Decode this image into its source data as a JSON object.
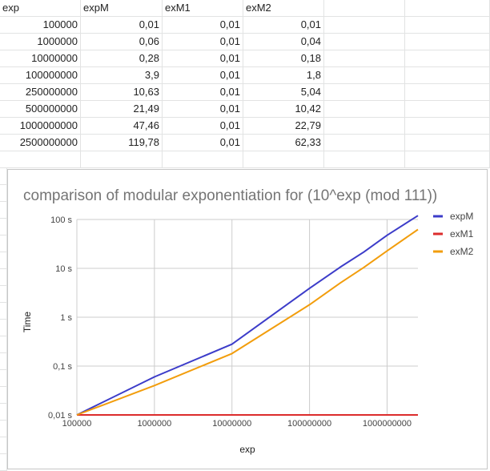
{
  "sheet": {
    "headers": [
      "exp",
      "expM",
      "exM1",
      "exM2"
    ],
    "rows": [
      [
        "100000",
        "0,01",
        "0,01",
        "0,01"
      ],
      [
        "1000000",
        "0,06",
        "0,01",
        "0,04"
      ],
      [
        "10000000",
        "0,28",
        "0,01",
        "0,18"
      ],
      [
        "100000000",
        "3,9",
        "0,01",
        "1,8"
      ],
      [
        "250000000",
        "10,63",
        "0,01",
        "5,04"
      ],
      [
        "500000000",
        "21,49",
        "0,01",
        "10,42"
      ],
      [
        "1000000000",
        "47,46",
        "0,01",
        "22,79"
      ],
      [
        "2500000000",
        "119,78",
        "0,01",
        "62,33"
      ]
    ]
  },
  "chart_data": {
    "type": "line",
    "title": "comparison of modular exponentiation for (10^exp (mod 111))",
    "xlabel": "exp",
    "ylabel": "Time",
    "x_scale": "log",
    "y_scale": "log",
    "xlim": [
      100000,
      2500000000
    ],
    "ylim": [
      0.01,
      100
    ],
    "x_ticks": [
      {
        "value": 100000,
        "label": "100000"
      },
      {
        "value": 1000000,
        "label": "1000000"
      },
      {
        "value": 10000000,
        "label": "10000000"
      },
      {
        "value": 100000000,
        "label": "100000000"
      },
      {
        "value": 1000000000,
        "label": "1000000000"
      }
    ],
    "y_ticks": [
      {
        "value": 0.01,
        "label": "0,01 s"
      },
      {
        "value": 0.1,
        "label": "0,1 s"
      },
      {
        "value": 1,
        "label": "1 s"
      },
      {
        "value": 10,
        "label": "10 s"
      },
      {
        "value": 100,
        "label": "100 s"
      }
    ],
    "grid": true,
    "legend_position": "right",
    "x": [
      100000,
      1000000,
      10000000,
      100000000,
      250000000,
      500000000,
      1000000000,
      2500000000
    ],
    "series": [
      {
        "name": "expM",
        "color": "#3c3cc9",
        "values": [
          0.01,
          0.06,
          0.28,
          3.9,
          10.63,
          21.49,
          47.46,
          119.78
        ]
      },
      {
        "name": "exM1",
        "color": "#dc2c2c",
        "values": [
          0.01,
          0.01,
          0.01,
          0.01,
          0.01,
          0.01,
          0.01,
          0.01
        ]
      },
      {
        "name": "exM2",
        "color": "#f29d0c",
        "values": [
          0.01,
          0.04,
          0.18,
          1.8,
          5.04,
          10.42,
          22.79,
          62.33
        ]
      }
    ]
  }
}
